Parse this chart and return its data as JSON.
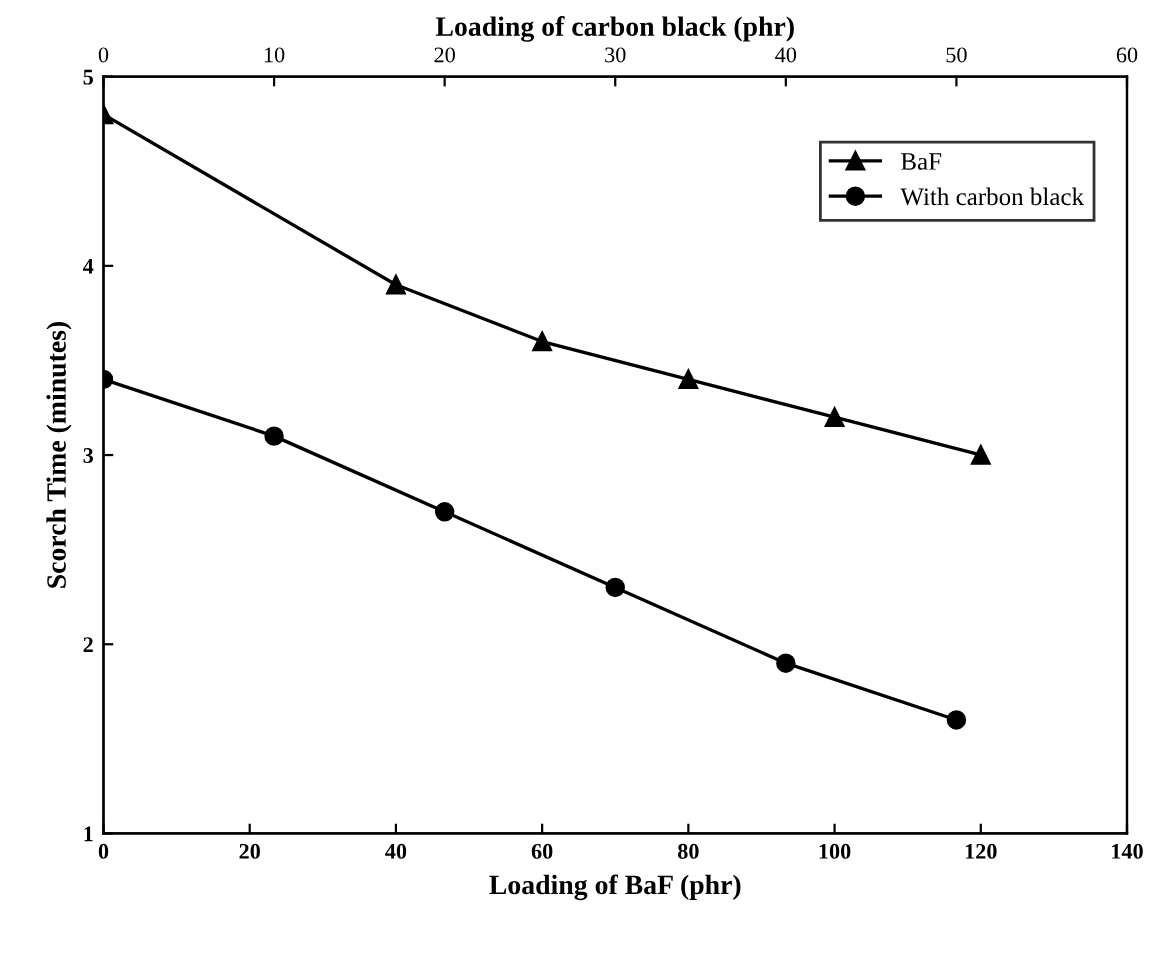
{
  "chart_data": {
    "type": "line",
    "xlabel": "Loading of BaF (phr)",
    "x2label": "Loading of carbon black (phr)",
    "ylabel": "Scorch Time (minutes)",
    "xlim": [
      0,
      140
    ],
    "xticks": [
      0,
      20,
      40,
      60,
      80,
      100,
      120,
      140
    ],
    "x2lim": [
      0,
      60
    ],
    "x2ticks": [
      0,
      10,
      20,
      30,
      40,
      50,
      60
    ],
    "ylim": [
      1,
      5
    ],
    "yticks": [
      1,
      2,
      3,
      4,
      5
    ],
    "grid": false,
    "legend": "top right",
    "series": [
      {
        "name": "BaF",
        "color": "#000000",
        "marker": "triangle",
        "x": [
          0,
          40,
          60,
          80,
          100,
          120
        ],
        "values": [
          4.8,
          3.9,
          3.6,
          3.4,
          3.2,
          3.0
        ]
      },
      {
        "name": "With carbon black",
        "color": "#000000",
        "marker": "circle",
        "axis": "x2",
        "x": [
          0,
          10,
          20,
          30,
          40,
          50
        ],
        "values": [
          3.4,
          3.1,
          2.7,
          2.3,
          1.9,
          1.6
        ]
      }
    ]
  }
}
